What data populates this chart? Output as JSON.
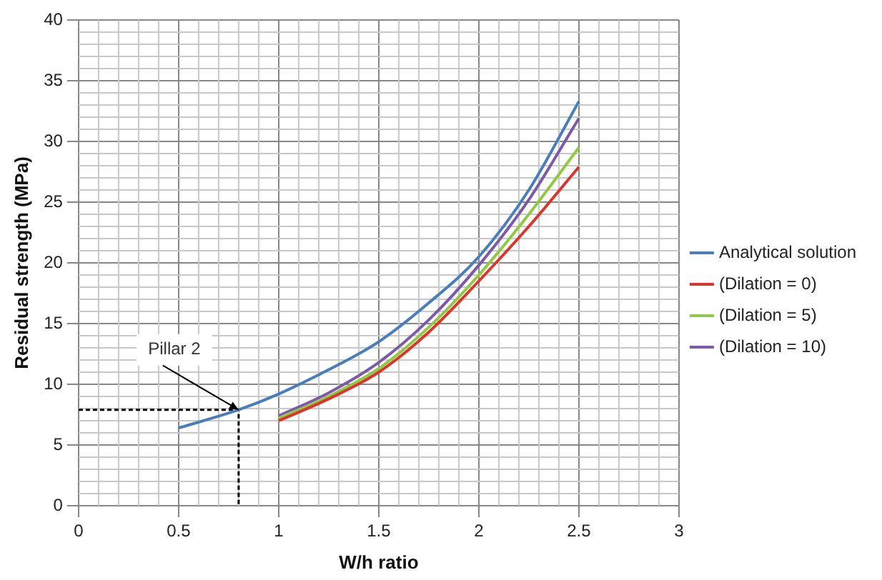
{
  "chart_data": {
    "type": "line",
    "xlabel": "W/h ratio",
    "ylabel": "Residual strength (MPa)",
    "xlim": [
      0,
      3
    ],
    "xticks": [
      0,
      0.5,
      1,
      1.5,
      2,
      2.5,
      3
    ],
    "ylim": [
      0,
      40
    ],
    "yticks": [
      0,
      5,
      10,
      15,
      20,
      25,
      30,
      35,
      40
    ],
    "grid": true,
    "legend": "right",
    "marker": "none",
    "line_style": "solid",
    "annotations": [
      {
        "text": "Pillar 2",
        "x": 0.8,
        "y": 7.9
      }
    ],
    "series": [
      {
        "name": "Analytical solution",
        "color": "#4a7ebb",
        "x": [
          0.5,
          0.8,
          1,
          1.25,
          1.5,
          1.75,
          2,
          2.25,
          2.5
        ],
        "values": [
          6.4,
          7.9,
          9.2,
          11.2,
          13.5,
          16.7,
          20.5,
          26,
          33.3
        ]
      },
      {
        "name": "(Dilation = 0)",
        "color": "#d9372b",
        "x": [
          1,
          1.25,
          1.5,
          1.75,
          2,
          2.25,
          2.5
        ],
        "values": [
          7.0,
          8.8,
          11.0,
          14.3,
          18.5,
          23,
          27.9
        ]
      },
      {
        "name": "(Dilation = 5)",
        "color": "#92c846",
        "x": [
          1,
          1.25,
          1.5,
          1.75,
          2,
          2.25,
          2.5
        ],
        "values": [
          7.2,
          9.0,
          11.3,
          14.7,
          19.0,
          24,
          29.5
        ]
      },
      {
        "name": "(Dilation = 10)",
        "color": "#7d5aa6",
        "x": [
          1,
          1.25,
          1.5,
          1.75,
          2,
          2.25,
          2.5
        ],
        "values": [
          7.4,
          9.3,
          11.8,
          15.3,
          19.8,
          25.2,
          31.9
        ]
      },
      {
        "color": "#000000",
        "line_style": "dashed",
        "x": [
          0,
          0.8,
          0.8
        ],
        "values": [
          7.9,
          7.9,
          0
        ]
      }
    ]
  }
}
